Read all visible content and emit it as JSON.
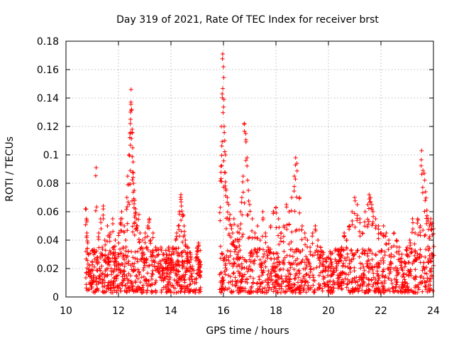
{
  "chart_data": {
    "type": "scatter",
    "title": "Day 319 of 2021, Rate Of TEC Index for receiver brst",
    "xlabel": "GPS time / hours",
    "ylabel": "ROTI / TECUs",
    "xlim": [
      10,
      24
    ],
    "ylim": [
      0,
      0.18
    ],
    "xticks": [
      10,
      12,
      14,
      16,
      18,
      20,
      22,
      24
    ],
    "xtick_labels": [
      "10",
      "12",
      "14",
      "16",
      "18",
      "20",
      "22",
      "24"
    ],
    "yticks": [
      0,
      0.02,
      0.04,
      0.06,
      0.08,
      0.1,
      0.12,
      0.14,
      0.16,
      0.18
    ],
    "ytick_labels": [
      "0",
      "0.02",
      "0.04",
      "0.06",
      "0.08",
      "0.1",
      "0.12",
      "0.14",
      "0.16",
      "0.18"
    ],
    "grid": true,
    "marker": "plus",
    "color": "#ff0000",
    "series": [
      {
        "x": [
          10.75,
          10.78,
          10.8,
          10.83,
          10.86,
          10.9,
          10.95,
          11.0,
          11.05,
          11.1,
          11.15,
          11.2,
          11.25,
          11.28,
          11.32,
          11.38,
          11.42,
          11.48,
          11.52,
          11.58,
          11.62,
          11.68,
          11.72,
          11.78,
          11.82,
          11.88,
          11.92,
          11.98,
          12.02,
          12.08,
          12.12,
          12.18,
          12.22,
          12.28,
          12.32,
          12.35,
          12.4,
          12.44,
          12.46,
          12.48,
          12.5,
          12.52,
          12.54,
          12.56,
          12.58,
          12.6,
          12.62,
          12.65,
          12.68,
          12.72,
          12.78,
          12.82,
          12.88,
          12.92,
          12.98,
          13.02,
          13.08,
          13.12,
          13.18,
          13.22,
          13.28,
          13.32,
          13.38,
          13.42,
          13.48,
          13.52,
          13.58,
          13.62,
          13.68,
          13.72,
          13.78,
          13.82,
          13.88,
          13.92,
          13.98,
          14.02,
          14.08,
          14.12,
          14.18,
          14.22,
          14.28,
          14.32,
          14.38,
          14.4,
          14.45,
          14.5,
          14.55,
          14.6,
          14.65,
          14.7,
          14.75,
          14.8,
          15.0,
          15.05,
          15.1,
          15.12,
          15.88,
          15.9,
          15.92,
          15.95,
          15.97,
          16.0,
          16.02,
          16.05,
          16.08,
          16.1,
          16.15,
          16.2,
          16.25,
          16.3,
          16.35,
          16.4,
          16.45,
          16.5,
          16.55,
          16.6,
          16.65,
          16.7,
          16.75,
          16.8,
          16.85,
          16.9,
          16.95,
          17.0,
          17.1,
          17.2,
          17.3,
          17.4,
          17.5,
          17.6,
          17.7,
          17.8,
          17.9,
          18.0,
          18.1,
          18.2,
          18.3,
          18.4,
          18.5,
          18.6,
          18.7,
          18.75,
          18.8,
          18.9,
          19.0,
          19.1,
          19.2,
          19.3,
          19.4,
          19.5,
          19.6,
          19.7,
          19.8,
          19.9,
          20.0,
          20.1,
          20.2,
          20.3,
          20.4,
          20.5,
          20.6,
          20.7,
          20.8,
          20.9,
          21.0,
          21.1,
          21.2,
          21.3,
          21.4,
          21.5,
          21.55,
          21.6,
          21.65,
          21.7,
          21.8,
          21.9,
          22.0,
          22.1,
          22.2,
          22.3,
          22.4,
          22.5,
          22.6,
          22.7,
          22.8,
          22.9,
          23.0,
          23.1,
          23.2,
          23.3,
          23.4,
          23.5,
          23.55,
          23.6,
          23.65,
          23.7,
          23.75,
          23.8,
          23.85,
          23.9,
          23.95,
          24.0
        ],
        "y": [
          0.062,
          0.055,
          0.045,
          0.038,
          0.03,
          0.022,
          0.018,
          0.025,
          0.015,
          0.032,
          0.091,
          0.028,
          0.045,
          0.02,
          0.055,
          0.035,
          0.064,
          0.04,
          0.025,
          0.05,
          0.03,
          0.045,
          0.02,
          0.055,
          0.035,
          0.04,
          0.025,
          0.03,
          0.045,
          0.055,
          0.06,
          0.035,
          0.05,
          0.04,
          0.07,
          0.085,
          0.1,
          0.115,
          0.125,
          0.146,
          0.132,
          0.118,
          0.105,
          0.095,
          0.08,
          0.075,
          0.068,
          0.062,
          0.055,
          0.05,
          0.058,
          0.045,
          0.035,
          0.04,
          0.03,
          0.045,
          0.035,
          0.05,
          0.055,
          0.04,
          0.03,
          0.045,
          0.025,
          0.035,
          0.02,
          0.03,
          0.025,
          0.035,
          0.02,
          0.03,
          0.025,
          0.03,
          0.02,
          0.035,
          0.025,
          0.03,
          0.035,
          0.02,
          0.04,
          0.045,
          0.05,
          0.06,
          0.072,
          0.064,
          0.058,
          0.05,
          0.04,
          0.03,
          0.035,
          0.025,
          0.03,
          0.02,
          0.035,
          0.038,
          0.025,
          0.018,
          0.063,
          0.092,
          0.12,
          0.143,
          0.171,
          0.162,
          0.139,
          0.11,
          0.1,
          0.075,
          0.07,
          0.065,
          0.058,
          0.05,
          0.045,
          0.055,
          0.04,
          0.035,
          0.05,
          0.045,
          0.06,
          0.07,
          0.085,
          0.122,
          0.115,
          0.098,
          0.075,
          0.065,
          0.055,
          0.045,
          0.05,
          0.04,
          0.06,
          0.045,
          0.035,
          0.05,
          0.06,
          0.063,
          0.055,
          0.045,
          0.05,
          0.065,
          0.06,
          0.07,
          0.085,
          0.098,
          0.094,
          0.07,
          0.05,
          0.045,
          0.04,
          0.035,
          0.045,
          0.05,
          0.04,
          0.035,
          0.03,
          0.025,
          0.028,
          0.03,
          0.02,
          0.025,
          0.03,
          0.035,
          0.045,
          0.04,
          0.05,
          0.06,
          0.07,
          0.065,
          0.055,
          0.045,
          0.06,
          0.065,
          0.072,
          0.07,
          0.065,
          0.06,
          0.055,
          0.05,
          0.045,
          0.05,
          0.045,
          0.04,
          0.035,
          0.045,
          0.04,
          0.035,
          0.03,
          0.025,
          0.035,
          0.04,
          0.055,
          0.045,
          0.055,
          0.05,
          0.103,
          0.089,
          0.087,
          0.074,
          0.061,
          0.055,
          0.05,
          0.055,
          0.052,
          0.048
        ]
      }
    ],
    "baseline_band": {
      "x_ranges": [
        [
          10.75,
          15.15
        ],
        [
          15.85,
          24.0
        ]
      ],
      "y_range": [
        0.003,
        0.025
      ]
    }
  }
}
